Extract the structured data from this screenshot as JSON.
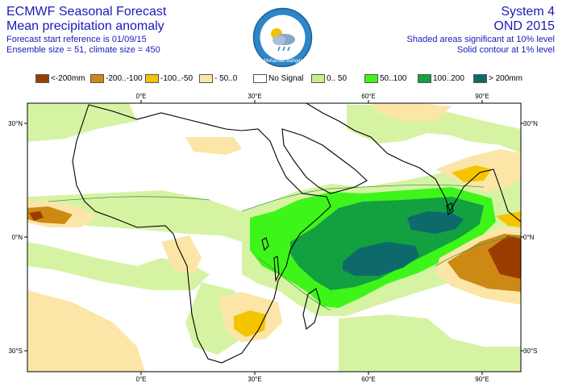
{
  "header": {
    "title_line1": "ECMWF Seasonal Forecast",
    "title_line2": "Mean precipitation anomaly",
    "start_ref": "Forecast start reference is 01/09/15",
    "ensemble": "Ensemble size = 51, climate size = 450",
    "system": "System 4",
    "season": "OND 2015",
    "note_shaded": "Shaded areas significant at 10% level",
    "note_contour": "Solid contour at 1% level"
  },
  "logo": {
    "text": "Mohamed Bahgat",
    "icon": "weather-cloud-logo"
  },
  "legend": [
    {
      "label": "<-200mm",
      "color": "#9c3d00"
    },
    {
      "label": "-200..-100",
      "color": "#cc8a14"
    },
    {
      "label": "-100..-50",
      "color": "#f5c400"
    },
    {
      "label": "- 50..0",
      "color": "#fbe6a8"
    },
    {
      "label": "No Signal",
      "color": "#ffffff"
    },
    {
      "label": "0.. 50",
      "color": "#c8f08a"
    },
    {
      "label": "50..100",
      "color": "#3ef51a"
    },
    {
      "label": "100..200",
      "color": "#12a040"
    },
    {
      "label": "> 200mm",
      "color": "#0e6a6a"
    }
  ],
  "axes": {
    "top_lon": [
      "0°E",
      "30°E",
      "60°E",
      "90°E"
    ],
    "bottom_lon": [
      "0°E",
      "30°E",
      "60°E",
      "90°E"
    ],
    "left_lat": [
      "30°N",
      "0°N",
      "30°S"
    ],
    "right_lat": [
      "30°N",
      "0°N",
      "30°S"
    ]
  }
}
